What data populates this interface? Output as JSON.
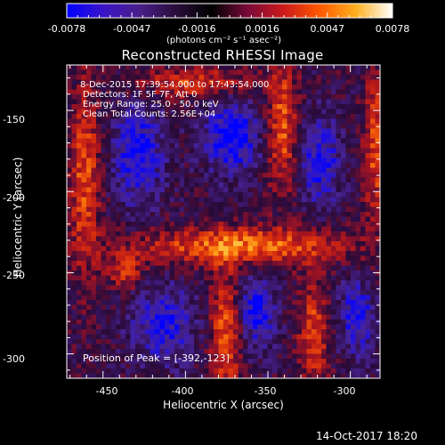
{
  "colorbar": {
    "tick_labels": [
      "-0.0078",
      "-0.0047",
      "-0.0016",
      "0.0016",
      "0.0047",
      "0.0078"
    ],
    "units_text": "(photons cm⁻² s⁻¹ asec⁻²)",
    "colors": [
      "#0000ff",
      "#3a13c8",
      "#4a1e8a",
      "#2a0e3c",
      "#000000",
      "#7a0a3a",
      "#cc1a1a",
      "#ff5a00",
      "#ffb020",
      "#ffffff"
    ]
  },
  "plot": {
    "title": "Reconstructed RHESSI Image",
    "annotations": [
      "8-Dec-2015 17:39:54.000 to 17:43:54.000",
      "Detectors: 1F 5F 7F, Att 0",
      "Energy Range: 25.0 - 50.0 keV",
      "Clean     Total Counts: 2.56E+04"
    ],
    "peak_label": "Position of Peak = [-392,-123]",
    "x_label": "Heliocentric X (arcsec)",
    "y_label": "Heliocentric Y (arcsec)",
    "x_ticks": [
      "-450",
      "-400",
      "-350",
      "-300"
    ],
    "y_ticks": [
      "-150",
      "-200",
      "-250",
      "-300"
    ],
    "timestamp": "14-Oct-2017 18:20"
  },
  "chart_data": {
    "type": "heatmap",
    "title": "Reconstructed RHESSI Image",
    "xlabel": "Heliocentric X (arcsec)",
    "ylabel": "Heliocentric Y (arcsec)",
    "xlim": [
      -472,
      -282
    ],
    "ylim": [
      -315,
      -122
    ],
    "color_range": [
      -0.0078,
      0.0078
    ],
    "peak_position": [
      -392,
      -123
    ]
  }
}
